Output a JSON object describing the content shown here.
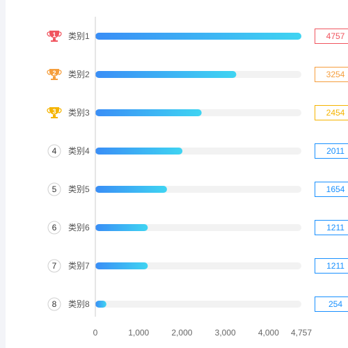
{
  "chart_data": {
    "type": "bar",
    "orientation": "horizontal",
    "categories": [
      "类别1",
      "类别2",
      "类别3",
      "类别4",
      "类别5",
      "类别6",
      "类别7",
      "类别8"
    ],
    "ranks": [
      "1",
      "2",
      "3",
      "4",
      "5",
      "6",
      "7",
      "8"
    ],
    "values": [
      4757,
      3254,
      2454,
      2011,
      1654,
      1211,
      1211,
      254
    ],
    "value_labels": [
      "4757",
      "3254",
      "2454",
      "2011",
      "1654",
      "1211",
      "1211",
      "254"
    ],
    "xlim": [
      0,
      4757
    ],
    "xticks": [
      0,
      1000,
      2000,
      3000,
      4000,
      4757
    ],
    "xtick_labels": [
      "0",
      "1,000",
      "2,000",
      "3,000",
      "4,000",
      "4,757"
    ],
    "grid": false,
    "legend": "none",
    "colors": {
      "bar_start": "#3a8ef6",
      "bar_end": "#3fd4f2",
      "track": "#f2f2f2",
      "rank1": "#f0555f",
      "rank2": "#f59e3d",
      "rank3": "#f5b400",
      "default_badge": "#1890ff",
      "axis": "#cccccc"
    }
  }
}
